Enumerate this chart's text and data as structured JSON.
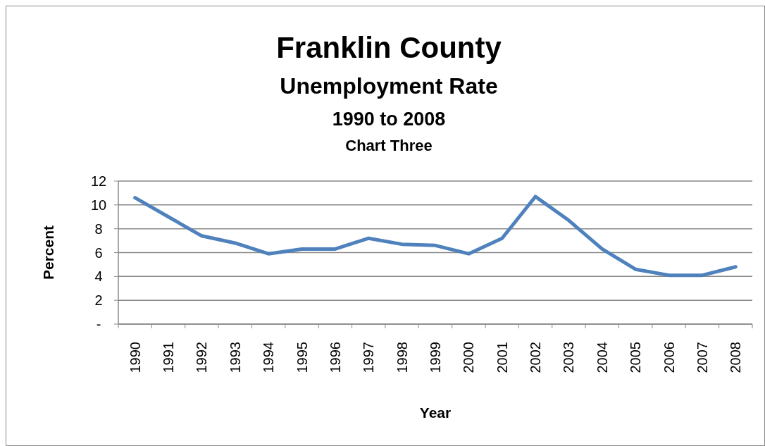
{
  "chart_data": {
    "type": "line",
    "title": "Franklin County",
    "subtitle": "Unemployment Rate",
    "annotations": [
      "1990 to 2008",
      "Chart Three"
    ],
    "xlabel": "Year",
    "ylabel": "Percent",
    "categories": [
      "1990",
      "1991",
      "1992",
      "1993",
      "1994",
      "1995",
      "1996",
      "1997",
      "1998",
      "1999",
      "2000",
      "2001",
      "2002",
      "2003",
      "2004",
      "2005",
      "2006",
      "2007",
      "2008"
    ],
    "series": [
      {
        "color": "#4f81bd",
        "values": [
          10.6,
          9.0,
          7.4,
          6.8,
          5.9,
          6.3,
          6.3,
          7.2,
          6.7,
          6.6,
          5.9,
          7.2,
          10.7,
          8.7,
          6.3,
          4.6,
          4.1,
          4.1,
          4.8
        ]
      }
    ],
    "ylim": [
      0,
      12
    ],
    "yticks": [
      {
        "value": 0,
        "label": "-"
      },
      2,
      4,
      6,
      8,
      10,
      12
    ],
    "grid": "y",
    "marker": "none",
    "line_style": "solid"
  }
}
